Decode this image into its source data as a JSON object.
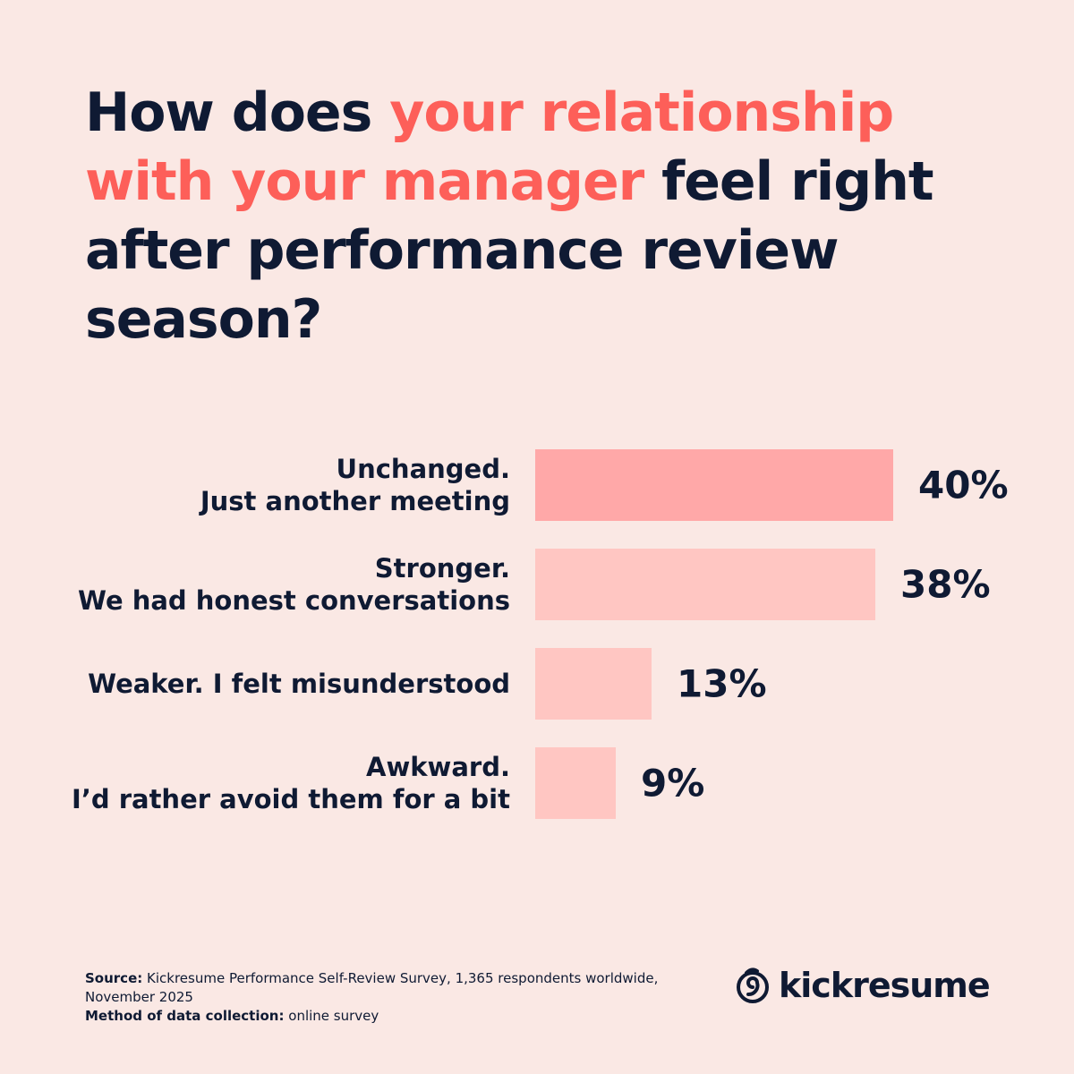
{
  "chart_data": {
    "type": "bar",
    "title": [
      "How does ",
      "your relationship with your manager",
      " feel right after performance review season?"
    ],
    "title_colors": [
      "#0f1a33",
      "#fd5f59",
      "#0f1a33"
    ],
    "categories": [
      "Unchanged.\nJust another meeting",
      "Stronger.\nWe had honest conversations",
      "Weaker. I felt misunderstood",
      "Awkward.\nI’d rather avoid them for a bit"
    ],
    "values": [
      40,
      38,
      13,
      9
    ],
    "value_labels": [
      "40%",
      "38%",
      "13%",
      "9%"
    ],
    "colors": [
      "#ffa8a8",
      "#ffc6c2",
      "#ffc6c2",
      "#ffc6c2"
    ]
  },
  "footer": {
    "source_label": "Source:",
    "source": "Kickresume Performance Self-Review Survey, 1,365 respondents worldwide, November 2025",
    "method_label": "Method of data collection:",
    "method": "online survey"
  },
  "logo": "kickresume"
}
